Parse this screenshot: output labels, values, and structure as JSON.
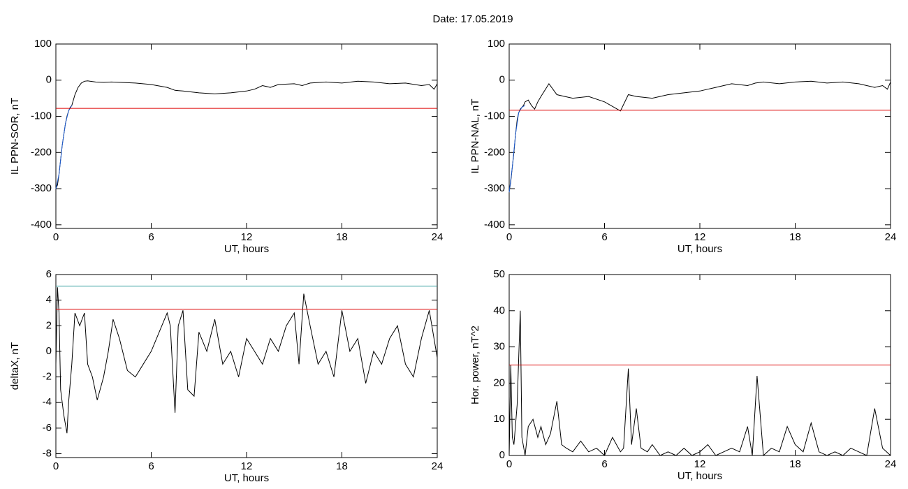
{
  "title": "Date:  17.05.2019",
  "chart_data": [
    {
      "type": "line",
      "ylabel": "IL PPN-SOR, nT",
      "xlabel": "UT, hours",
      "xlim": [
        0,
        24
      ],
      "ylim": [
        -410,
        100
      ],
      "xticks": [
        0,
        6,
        12,
        18,
        24
      ],
      "yticks": [
        100,
        0,
        -100,
        -200,
        -300,
        -400
      ],
      "hlines": [
        {
          "value": -78,
          "color": "#dd0000"
        }
      ],
      "series": [
        {
          "color": "#000000",
          "x": [
            0,
            0.1,
            0.2,
            0.3,
            0.4,
            0.5,
            0.6,
            0.7,
            0.8,
            0.9,
            1,
            1.2,
            1.4,
            1.6,
            1.8,
            2,
            2.5,
            3,
            3.5,
            4,
            5,
            6,
            7,
            7.5,
            8,
            9,
            10,
            11,
            12,
            12.5,
            13,
            13.5,
            14,
            15,
            15.5,
            16,
            17,
            18,
            19,
            20,
            21,
            22,
            23,
            23.5,
            23.8,
            24
          ],
          "values": [
            -300,
            -290,
            -260,
            -220,
            -180,
            -150,
            -120,
            -100,
            -85,
            -75,
            -70,
            -40,
            -20,
            -8,
            -3,
            -2,
            -5,
            -6,
            -5,
            -6,
            -8,
            -12,
            -20,
            -28,
            -30,
            -35,
            -38,
            -35,
            -30,
            -25,
            -15,
            -20,
            -12,
            -10,
            -15,
            -8,
            -5,
            -8,
            -3,
            -5,
            -10,
            -8,
            -15,
            -12,
            -25,
            -10
          ]
        },
        {
          "color": "#1f5fd6",
          "x": [
            0,
            0.2,
            0.4,
            0.6,
            0.8,
            1
          ],
          "values": [
            -300,
            -260,
            -180,
            -120,
            -85,
            -70
          ]
        }
      ]
    },
    {
      "type": "line",
      "ylabel": "IL PPN-NAL, nT",
      "xlabel": "UT, hours",
      "xlim": [
        0,
        24
      ],
      "ylim": [
        -410,
        100
      ],
      "xticks": [
        0,
        6,
        12,
        18,
        24
      ],
      "yticks": [
        100,
        0,
        -100,
        -200,
        -300,
        -400
      ],
      "hlines": [
        {
          "value": -83,
          "color": "#dd0000"
        }
      ],
      "series": [
        {
          "color": "#000000",
          "x": [
            0,
            0.1,
            0.2,
            0.3,
            0.4,
            0.5,
            0.6,
            0.7,
            0.8,
            0.9,
            1,
            1.2,
            1.4,
            1.6,
            1.8,
            2,
            2.5,
            3,
            3.5,
            4,
            5,
            6,
            7,
            7.5,
            8,
            9,
            10,
            11,
            12,
            12.5,
            13,
            13.5,
            14,
            15,
            15.5,
            16,
            17,
            18,
            19,
            20,
            21,
            22,
            23,
            23.5,
            23.8,
            24
          ],
          "values": [
            -310,
            -280,
            -240,
            -200,
            -150,
            -110,
            -90,
            -80,
            -75,
            -70,
            -60,
            -55,
            -70,
            -80,
            -60,
            -45,
            -10,
            -40,
            -45,
            -50,
            -45,
            -60,
            -85,
            -40,
            -45,
            -50,
            -40,
            -35,
            -30,
            -25,
            -20,
            -15,
            -10,
            -15,
            -8,
            -5,
            -10,
            -5,
            -3,
            -8,
            -5,
            -10,
            -20,
            -15,
            -25,
            -5
          ]
        },
        {
          "color": "#1f5fd6",
          "x": [
            0,
            0.2,
            0.4,
            0.6,
            0.8,
            1
          ],
          "values": [
            -310,
            -240,
            -150,
            -90,
            -75,
            -70
          ]
        }
      ]
    },
    {
      "type": "line",
      "ylabel": "deltaX, nT",
      "xlabel": "UT, hours",
      "xlim": [
        0,
        24
      ],
      "ylim": [
        -8.3,
        6
      ],
      "xticks": [
        0,
        6,
        12,
        18,
        24
      ],
      "yticks": [
        6,
        4,
        2,
        0,
        -2,
        -4,
        -6,
        -8
      ],
      "hlines": [
        {
          "value": 5.1,
          "color": "#2a9a9a"
        },
        {
          "value": 3.3,
          "color": "#dd0000"
        }
      ],
      "series": [
        {
          "color": "#000000",
          "x": [
            0,
            0.1,
            0.2,
            0.3,
            0.5,
            0.7,
            0.8,
            1,
            1.2,
            1.5,
            1.8,
            2,
            2.3,
            2.6,
            3,
            3.3,
            3.6,
            4,
            4.5,
            5,
            5.5,
            6,
            6.5,
            7,
            7.2,
            7.5,
            7.7,
            8,
            8.3,
            8.7,
            9,
            9.5,
            10,
            10.5,
            11,
            11.5,
            12,
            12.5,
            13,
            13.5,
            14,
            14.5,
            15,
            15.3,
            15.6,
            16,
            16.5,
            17,
            17.5,
            18,
            18.5,
            19,
            19.5,
            20,
            20.5,
            21,
            21.5,
            22,
            22.5,
            23,
            23.5,
            24
          ],
          "values": [
            -1,
            5,
            3,
            -3,
            -5,
            -6.4,
            -4,
            -1,
            3,
            2,
            3,
            -1,
            -2,
            -3.8,
            -2,
            0,
            2.5,
            1,
            -1.5,
            -2,
            -1,
            0,
            1.5,
            3,
            2,
            -4.8,
            2,
            3.2,
            -3,
            -3.5,
            1.5,
            0,
            2.5,
            -1,
            0,
            -2,
            1,
            0,
            -1,
            1,
            0,
            2,
            3,
            -1,
            4.5,
            2,
            -1,
            0,
            -2,
            3.2,
            0,
            1,
            -2.5,
            0,
            -1,
            1,
            2,
            -1,
            -2,
            1,
            3.2,
            -0.5
          ]
        }
      ]
    },
    {
      "type": "line",
      "ylabel": "Hor. power, nT^2",
      "xlabel": "UT, hours",
      "xlim": [
        0,
        24
      ],
      "ylim": [
        0,
        50
      ],
      "xticks": [
        0,
        6,
        12,
        18,
        24
      ],
      "yticks": [
        50,
        40,
        30,
        20,
        10,
        0
      ],
      "hlines": [
        {
          "value": 25,
          "color": "#dd0000"
        }
      ],
      "series": [
        {
          "color": "#000000",
          "x": [
            0,
            0.1,
            0.2,
            0.3,
            0.5,
            0.7,
            0.8,
            1,
            1.2,
            1.5,
            1.8,
            2,
            2.3,
            2.6,
            3,
            3.3,
            3.6,
            4,
            4.5,
            5,
            5.5,
            6,
            6.5,
            7,
            7.2,
            7.5,
            7.7,
            8,
            8.3,
            8.7,
            9,
            9.5,
            10,
            10.5,
            11,
            11.5,
            12,
            12.5,
            13,
            13.5,
            14,
            14.5,
            15,
            15.3,
            15.6,
            16,
            16.5,
            17,
            17.5,
            18,
            18.5,
            19,
            19.5,
            20,
            20.5,
            21,
            21.5,
            22,
            22.5,
            23,
            23.5,
            24
          ],
          "values": [
            0,
            25,
            5,
            3,
            14,
            40,
            5,
            0,
            8,
            10,
            5,
            8,
            3,
            6,
            15,
            3,
            2,
            1,
            4,
            1,
            2,
            0,
            5,
            1,
            2,
            24,
            3,
            13,
            2,
            1,
            3,
            0,
            1,
            0,
            2,
            0,
            1,
            3,
            0,
            1,
            2,
            1,
            8,
            0,
            22,
            0,
            2,
            1,
            8,
            3,
            1,
            9,
            1,
            0,
            1,
            0,
            2,
            1,
            0,
            13,
            2,
            0
          ]
        }
      ]
    }
  ]
}
